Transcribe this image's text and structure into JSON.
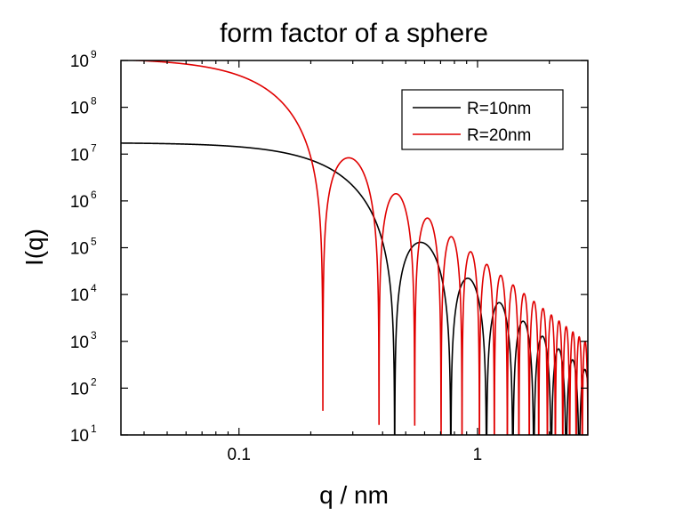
{
  "chart_data": {
    "type": "line",
    "title": "form factor of a sphere",
    "xlabel": "q / nm",
    "ylabel": "I(q)",
    "x_scale": "log",
    "y_scale": "log",
    "xlim": [
      0.032,
      2.9
    ],
    "ylim": [
      10,
      1000000000
    ],
    "x_ticks": [
      {
        "value": 0.1,
        "label": "0.1"
      },
      {
        "value": 1,
        "label": "1"
      }
    ],
    "y_ticks": [
      {
        "value": 10,
        "base": "10",
        "exp": "1"
      },
      {
        "value": 100,
        "base": "10",
        "exp": "2"
      },
      {
        "value": 1000,
        "base": "10",
        "exp": "3"
      },
      {
        "value": 10000,
        "base": "10",
        "exp": "4"
      },
      {
        "value": 100000,
        "base": "10",
        "exp": "5"
      },
      {
        "value": 1000000,
        "base": "10",
        "exp": "6"
      },
      {
        "value": 10000000,
        "base": "10",
        "exp": "7"
      },
      {
        "value": 100000000,
        "base": "10",
        "exp": "8"
      },
      {
        "value": 1000000000,
        "base": "10",
        "exp": "9"
      }
    ],
    "grid": false,
    "legend_position": "top-right",
    "series": [
      {
        "name": "R=10nm",
        "radius_nm": 10,
        "color": "#000000"
      },
      {
        "name": "R=20nm",
        "radius_nm": 20,
        "color": "#e00000"
      }
    ]
  }
}
